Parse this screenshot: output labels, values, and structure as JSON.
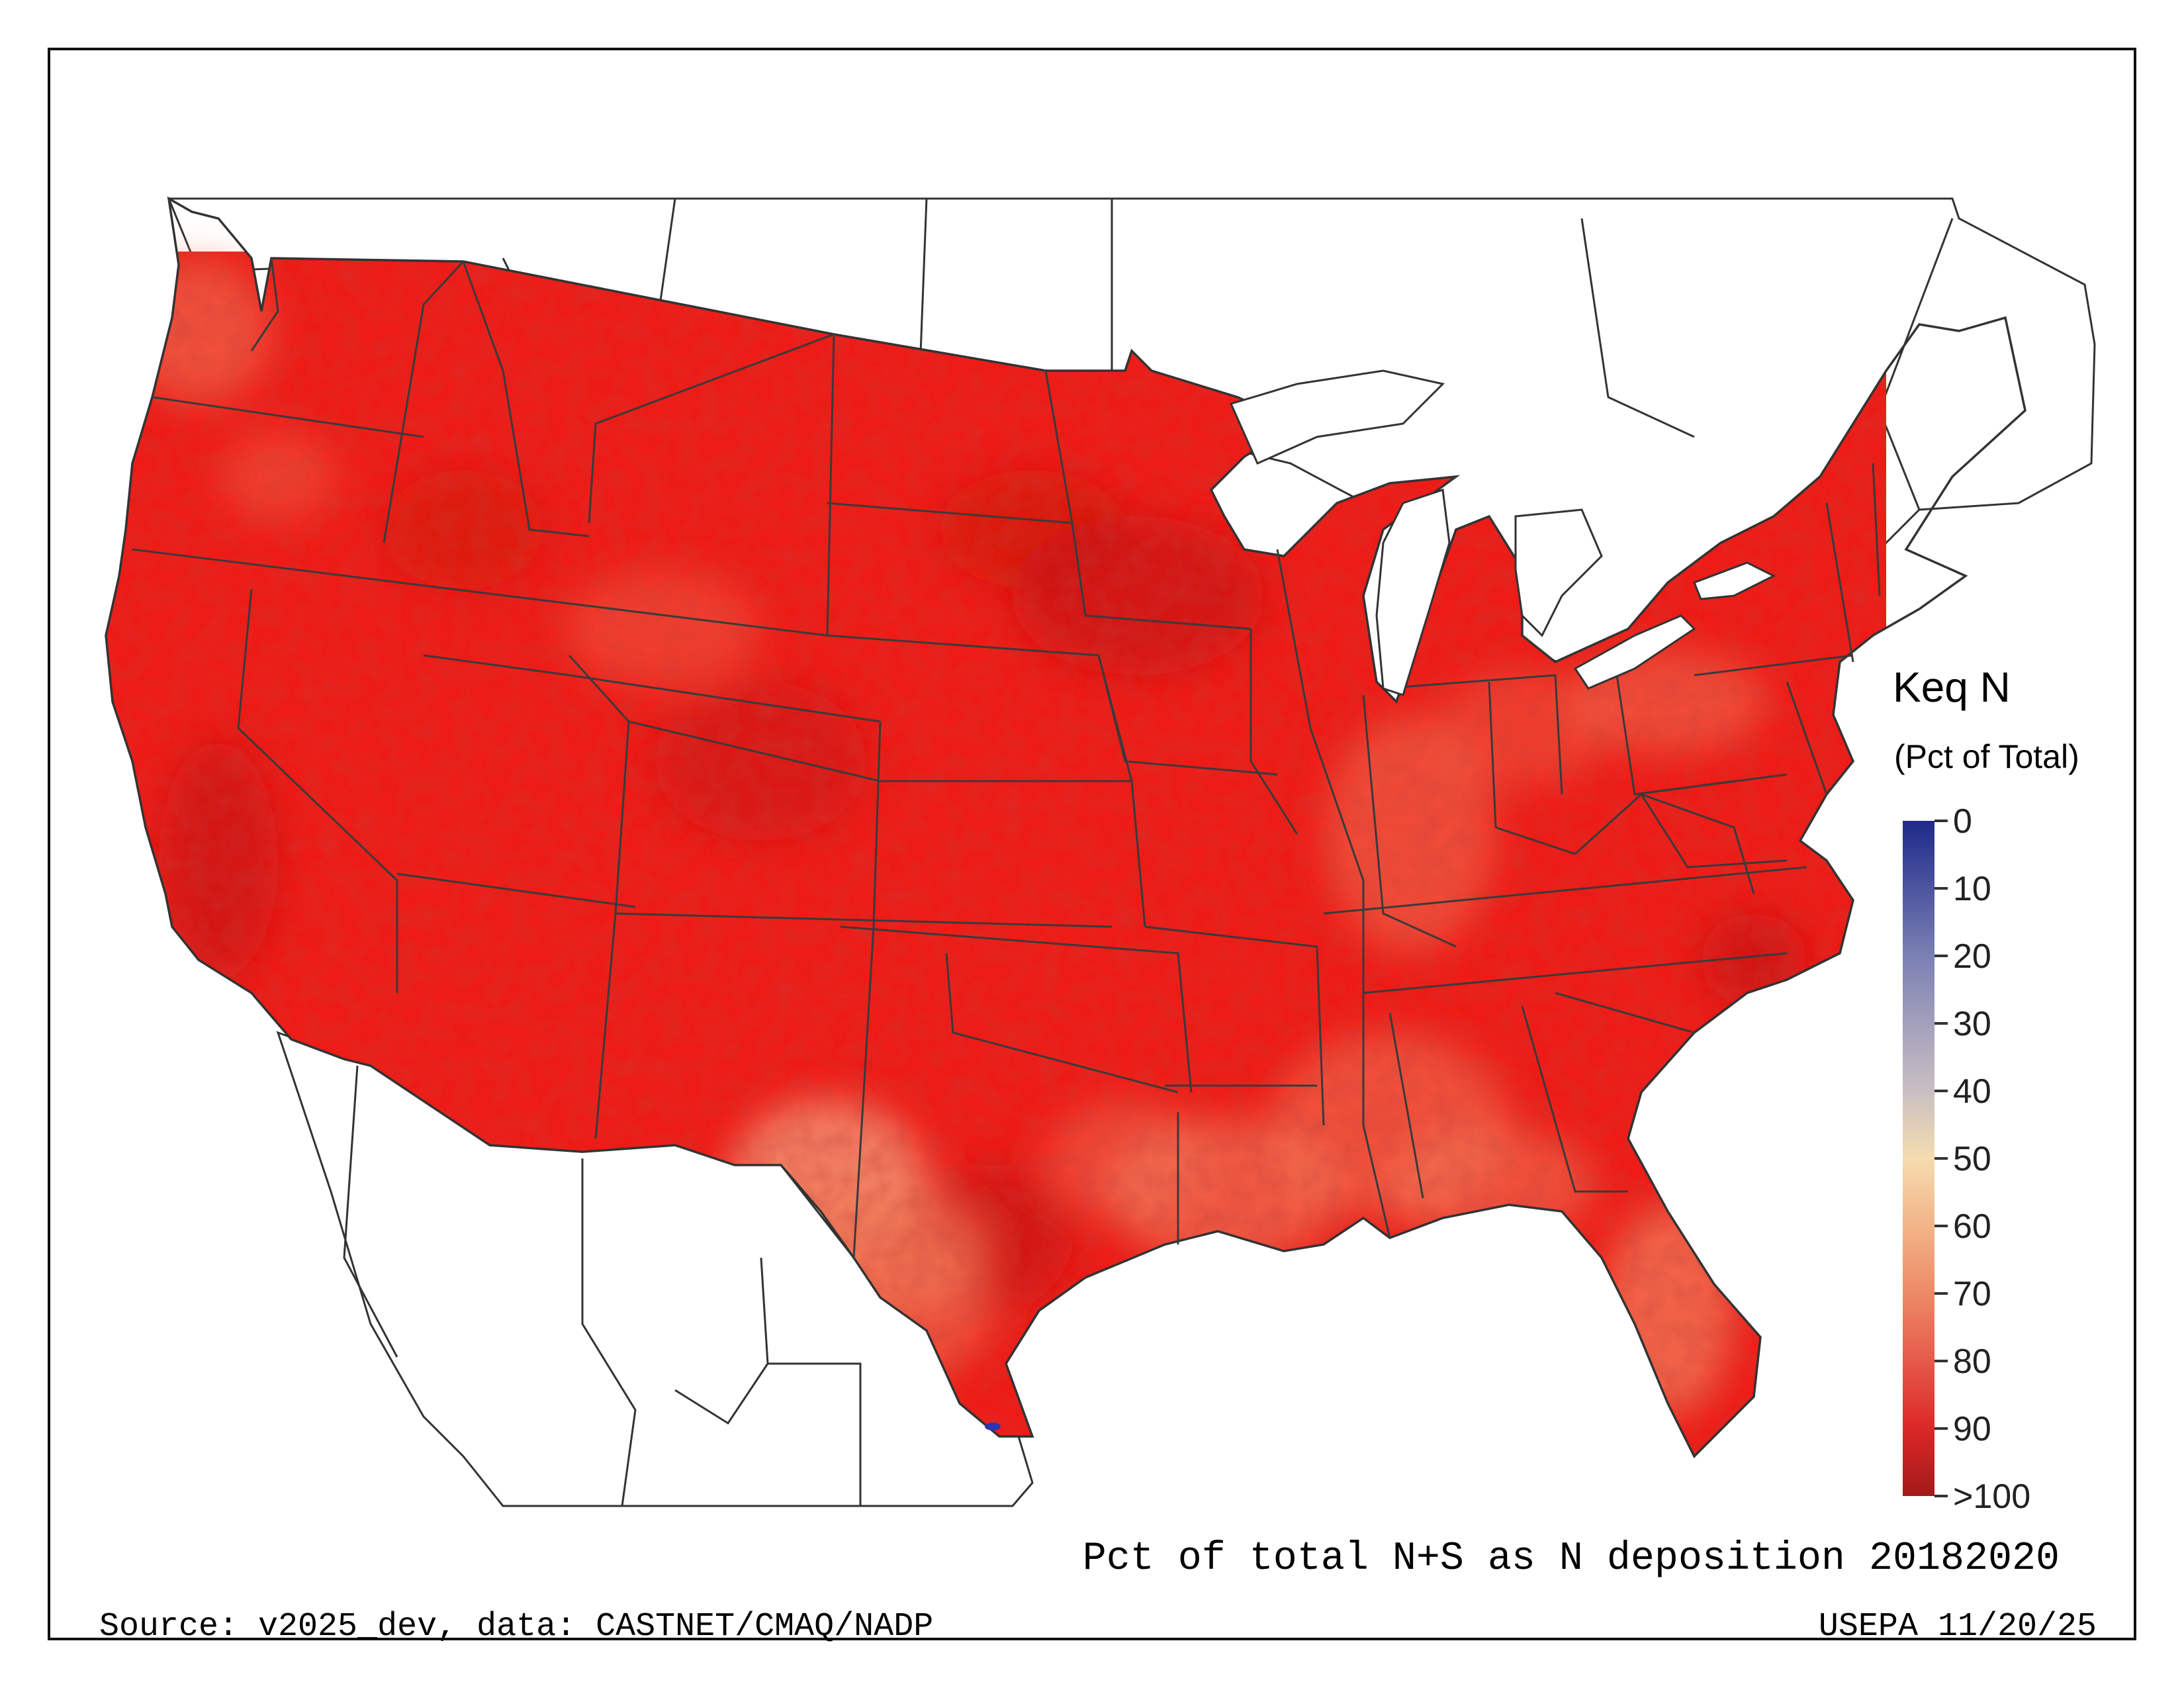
{
  "title": "Pct of total N+S as N deposition 20182020",
  "source": "Source: v2025_dev, data: CASTNET/CMAQ/NADP",
  "credit": "USEPA 11/20/25",
  "legend": {
    "title": "Keq N",
    "subtitle": "(Pct of Total)",
    "ticks": [
      "0",
      "10",
      "20",
      "30",
      "40",
      "50",
      "60",
      "70",
      "80",
      "90",
      ">100"
    ],
    "stops": [
      {
        "value": 0,
        "color": "#1f2a8a"
      },
      {
        "value": 20,
        "color": "#7b80b3"
      },
      {
        "value": 40,
        "color": "#c9bfc2"
      },
      {
        "value": 50,
        "color": "#f4dcb0"
      },
      {
        "value": 60,
        "color": "#f2b488"
      },
      {
        "value": 70,
        "color": "#ec8a66"
      },
      {
        "value": 80,
        "color": "#e65a4a"
      },
      {
        "value": 90,
        "color": "#dc2828"
      },
      {
        "value": 100,
        "color": "#a31a1a"
      }
    ]
  },
  "colors": {
    "base": "#ee1c17",
    "dark": "#c0140f",
    "light": "#f07a5a",
    "pale": "#f3c89c",
    "blue": "#2b36b4",
    "border": "#333333"
  },
  "map": {
    "region": "contiguous-united-states",
    "dominant_range": "80-100",
    "lower_value_area": "south-texas-and-gulf-coast"
  }
}
